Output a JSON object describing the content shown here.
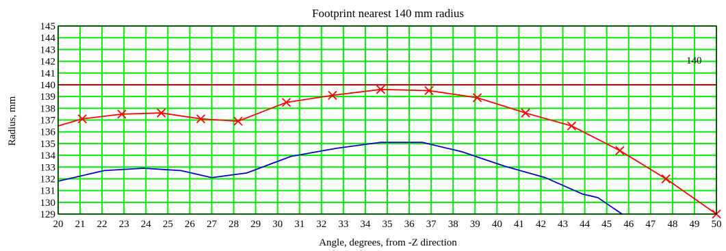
{
  "chart_data": {
    "type": "line",
    "title": "Footprint nearest 140 mm radius",
    "xlabel": "Angle, degrees,  from -Z direction",
    "ylabel": "Radius, mm",
    "xlim": [
      20,
      50
    ],
    "ylim": [
      129,
      145
    ],
    "x_ticks": [
      20,
      21,
      22,
      23,
      24,
      25,
      26,
      27,
      28,
      29,
      30,
      31,
      32,
      33,
      34,
      35,
      36,
      37,
      38,
      39,
      40,
      41,
      42,
      43,
      44,
      45,
      46,
      47,
      48,
      49,
      50
    ],
    "y_ticks": [
      129,
      130,
      131,
      132,
      133,
      134,
      135,
      136,
      137,
      138,
      139,
      140,
      141,
      142,
      143,
      144,
      145
    ],
    "grid": true,
    "grid_color": "#00ee00",
    "reference_line": {
      "y": 140,
      "label": "140",
      "color": "#cc0000"
    },
    "series": [
      {
        "color": "#ff0000",
        "marker": "x",
        "x": [
          20,
          21.1,
          22.9,
          24.7,
          26.5,
          28.2,
          30.4,
          32.5,
          34.7,
          36.9,
          39.1,
          41.3,
          43.4,
          45.6,
          47.7,
          50
        ],
        "y": [
          136.5,
          137.1,
          137.5,
          137.6,
          137.1,
          136.9,
          138.5,
          139.1,
          139.6,
          139.5,
          138.9,
          137.6,
          136.5,
          134.4,
          132.0,
          129.0
        ],
        "markers_at": [
          21.1,
          22.9,
          24.7,
          26.5,
          28.2,
          30.4,
          32.5,
          34.7,
          36.9,
          39.1,
          41.3,
          43.4,
          45.6,
          47.7,
          50
        ]
      },
      {
        "color": "#0000cc",
        "marker": "none",
        "x": [
          20,
          22.1,
          23.9,
          25.6,
          27.0,
          28.6,
          30.6,
          32.7,
          34.7,
          36.6,
          38.4,
          40.3,
          42.2,
          43.9,
          44.6,
          45.7
        ],
        "y": [
          131.8,
          132.7,
          132.9,
          132.7,
          132.1,
          132.5,
          133.9,
          134.6,
          135.1,
          135.1,
          134.3,
          133.1,
          132.1,
          130.7,
          130.4,
          129.0
        ]
      }
    ]
  }
}
